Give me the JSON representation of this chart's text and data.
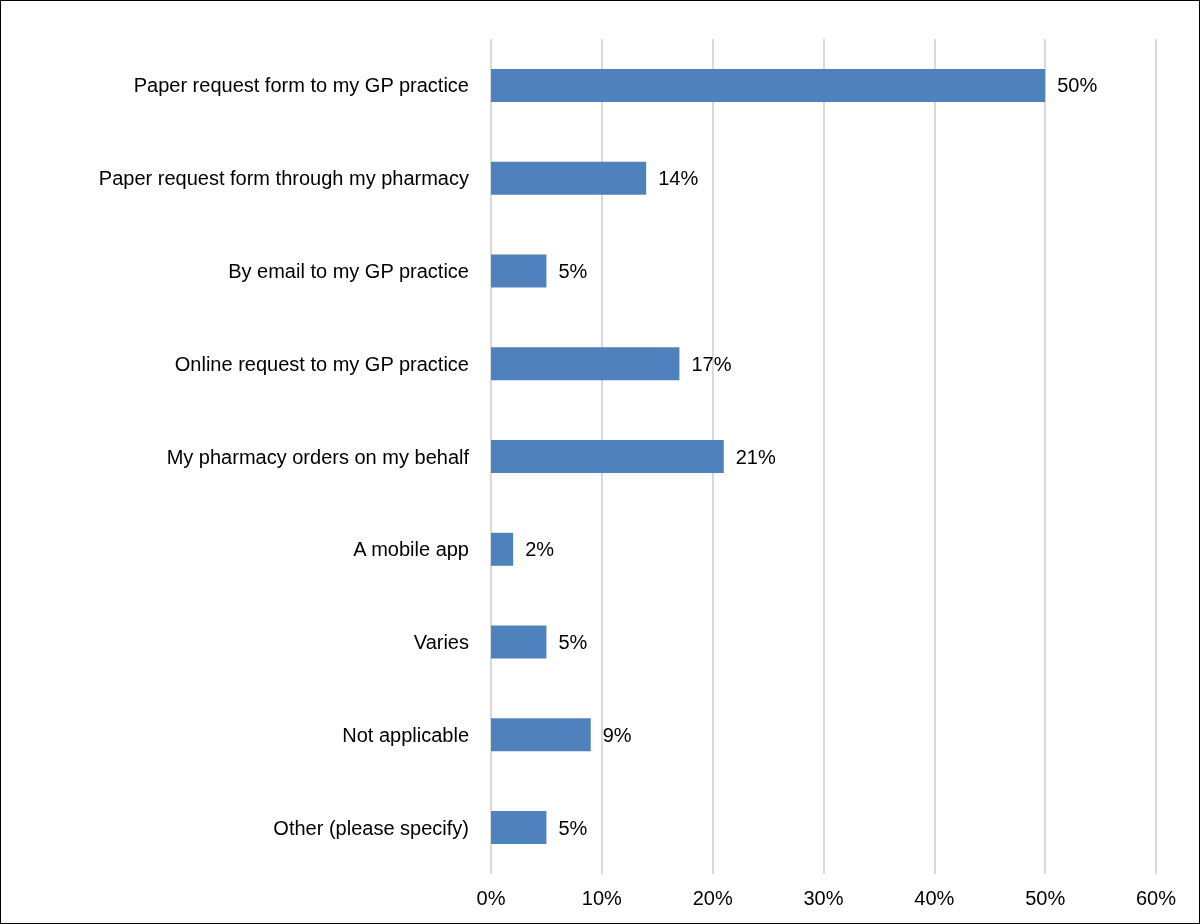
{
  "chart_data": {
    "type": "bar",
    "orientation": "horizontal",
    "categories": [
      "Paper request form to my GP practice",
      "Paper request form through my pharmacy",
      "By email to my GP practice",
      "Online request to my GP practice",
      "My pharmacy orders on my behalf",
      "A mobile app",
      "Varies",
      "Not applicable",
      "Other (please specify)"
    ],
    "values": [
      50,
      14,
      5,
      17,
      21,
      2,
      5,
      9,
      5
    ],
    "value_labels": [
      "50%",
      "14%",
      "5%",
      "17%",
      "21%",
      "2%",
      "5%",
      "9%",
      "5%"
    ],
    "color": "#4f81bd",
    "xlim": [
      0,
      60
    ],
    "xticks": [
      {
        "value": 0,
        "label": "0%"
      },
      {
        "value": 10,
        "label": "10%"
      },
      {
        "value": 20,
        "label": "20%"
      },
      {
        "value": 30,
        "label": "30%"
      },
      {
        "value": 40,
        "label": "40%"
      },
      {
        "value": 50,
        "label": "50%"
      },
      {
        "value": 60,
        "label": "60%"
      }
    ],
    "grid": "x"
  }
}
